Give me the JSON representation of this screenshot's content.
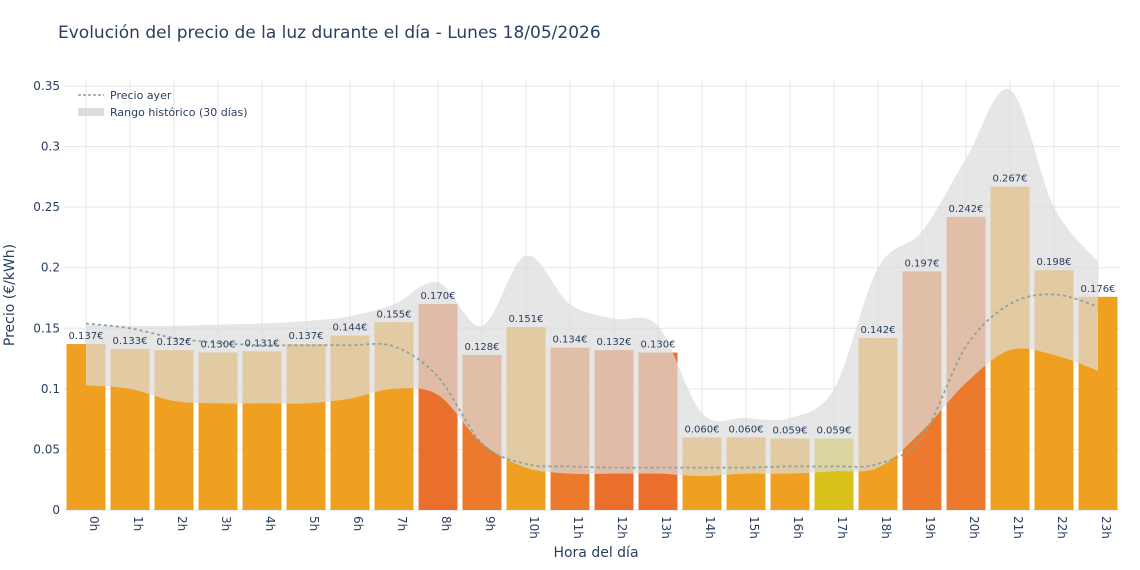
{
  "chart_data": {
    "type": "bar",
    "title": "Evolución del precio de la luz durante el día - Lunes 18/05/2026",
    "xlabel": "Hora del día",
    "ylabel": "Precio (€/kWh)",
    "ylim": [
      0,
      0.355
    ],
    "yticks": [
      "0",
      "0.05",
      "0.1",
      "0.15",
      "0.2",
      "0.25",
      "0.3",
      "0.35"
    ],
    "grid": true,
    "legend_position": "top-left",
    "categories": [
      "0h",
      "1h",
      "2h",
      "3h",
      "4h",
      "5h",
      "6h",
      "7h",
      "8h",
      "9h",
      "10h",
      "11h",
      "12h",
      "13h",
      "14h",
      "15h",
      "16h",
      "17h",
      "18h",
      "19h",
      "20h",
      "21h",
      "22h",
      "23h"
    ],
    "series": [
      {
        "values": [
          0.137,
          0.133,
          0.132,
          0.13,
          0.131,
          0.137,
          0.144,
          0.155,
          0.17,
          0.128,
          0.151,
          0.134,
          0.132,
          0.13,
          0.06,
          0.06,
          0.059,
          0.059,
          0.142,
          0.197,
          0.242,
          0.267,
          0.198,
          0.176
        ],
        "labels": [
          "0.137€",
          "0.133€",
          "0.132€",
          "0.130€",
          "0.131€",
          "0.137€",
          "0.144€",
          "0.155€",
          "0.170€",
          "0.128€",
          "0.151€",
          "0.134€",
          "0.132€",
          "0.130€",
          "0.060€",
          "0.060€",
          "0.059€",
          "0.059€",
          "0.142€",
          "0.197€",
          "0.242€",
          "0.267€",
          "0.198€",
          "0.176€"
        ],
        "colors": [
          "#f0a020",
          "#f0a020",
          "#f0a020",
          "#f0a020",
          "#f0a020",
          "#f0a020",
          "#f0a020",
          "#f0a020",
          "#eb6f2c",
          "#eb7a2c",
          "#f0a020",
          "#eb7a2c",
          "#eb6f2c",
          "#eb6f2c",
          "#f0a020",
          "#f0a020",
          "#f0a020",
          "#d8c21a",
          "#f0a020",
          "#eb7a2c",
          "#eb7a2c",
          "#f0a020",
          "#f0a020",
          "#f0a020"
        ]
      },
      {
        "name": "Precio ayer",
        "type": "line",
        "values": [
          0.154,
          0.15,
          0.142,
          0.138,
          0.136,
          0.136,
          0.136,
          0.135,
          0.11,
          0.055,
          0.038,
          0.036,
          0.035,
          0.035,
          0.035,
          0.035,
          0.036,
          0.036,
          0.038,
          0.06,
          0.135,
          0.17,
          0.178,
          0.168
        ]
      },
      {
        "name": "Rango histórico (30 días)",
        "type": "band",
        "low": [
          0.103,
          0.1,
          0.09,
          0.088,
          0.088,
          0.088,
          0.092,
          0.1,
          0.095,
          0.055,
          0.035,
          0.03,
          0.03,
          0.03,
          0.028,
          0.03,
          0.03,
          0.032,
          0.035,
          0.065,
          0.105,
          0.132,
          0.128,
          0.115
        ],
        "high": [
          0.153,
          0.152,
          0.152,
          0.153,
          0.154,
          0.156,
          0.16,
          0.17,
          0.188,
          0.152,
          0.21,
          0.17,
          0.158,
          0.152,
          0.08,
          0.076,
          0.076,
          0.1,
          0.2,
          0.23,
          0.29,
          0.347,
          0.25,
          0.205
        ]
      }
    ]
  },
  "colors": {
    "text": "#2a3f5f",
    "grid": "#e6e6e6",
    "band": "#dcdcdc",
    "line": "#8ba3a3"
  }
}
